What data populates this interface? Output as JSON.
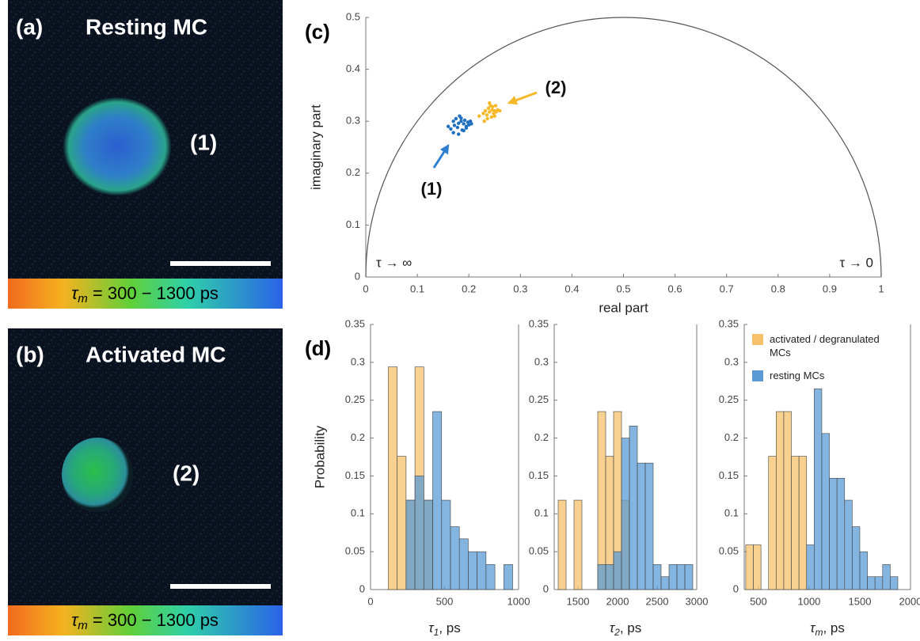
{
  "images": [
    {
      "label": "(a)",
      "title": "Resting MC",
      "cell_label": "(1)",
      "colorbar": {
        "symbol": "τ",
        "subscript": "m",
        "text": " = 300 − 1300 ps"
      }
    },
    {
      "label": "(b)",
      "title": "Activated MC",
      "cell_label": "(2)",
      "colorbar": {
        "symbol": "τ",
        "subscript": "m",
        "text": " = 300 − 1300 ps"
      }
    }
  ],
  "chart_data": [
    {
      "type": "scatter",
      "panel_label": "(c)",
      "x_label": "real part",
      "y_label": "imaginary part",
      "xlim": [
        0,
        1
      ],
      "ylim": [
        0,
        0.5
      ],
      "xticks": [
        0,
        0.1,
        0.2,
        0.3,
        0.4,
        0.5,
        0.6,
        0.7,
        0.8,
        0.9,
        1
      ],
      "yticks": [
        0,
        0.1,
        0.2,
        0.3,
        0.4,
        0.5
      ],
      "annotations": [
        {
          "text": "(1)"
        },
        {
          "text": "(2)"
        },
        {
          "text": "τ → ∞"
        },
        {
          "text": "τ → 0"
        }
      ],
      "series": [
        {
          "color": "#1f6fbf",
          "x": [
            0.16,
            0.165,
            0.17,
            0.172,
            0.175,
            0.178,
            0.18,
            0.182,
            0.185,
            0.187,
            0.19,
            0.192,
            0.195,
            0.198,
            0.2,
            0.203,
            0.205,
            0.17,
            0.18,
            0.19,
            0.185,
            0.195
          ],
          "y": [
            0.29,
            0.285,
            0.3,
            0.292,
            0.305,
            0.288,
            0.296,
            0.31,
            0.3,
            0.283,
            0.295,
            0.302,
            0.29,
            0.298,
            0.293,
            0.3,
            0.295,
            0.278,
            0.275,
            0.282,
            0.306,
            0.287
          ]
        },
        {
          "color": "#f5b829",
          "x": [
            0.22,
            0.228,
            0.232,
            0.235,
            0.238,
            0.24,
            0.242,
            0.245,
            0.248,
            0.25,
            0.253,
            0.256,
            0.26,
            0.236,
            0.244,
            0.25,
            0.24,
            0.23,
            0.246,
            0.252
          ],
          "y": [
            0.31,
            0.315,
            0.32,
            0.312,
            0.325,
            0.318,
            0.33,
            0.322,
            0.315,
            0.32,
            0.318,
            0.322,
            0.32,
            0.305,
            0.308,
            0.31,
            0.335,
            0.3,
            0.328,
            0.33
          ]
        }
      ]
    },
    {
      "type": "histogram",
      "panel_label": "(d)",
      "y_label": "Probability",
      "x_label": {
        "symbol": "τ",
        "subscript": "1",
        "unit": ", ps"
      },
      "xlim": [
        0,
        1000
      ],
      "ylim": [
        0,
        0.35
      ],
      "xticks": [
        0,
        500,
        1000
      ],
      "yticks": [
        0,
        0.05,
        0.1,
        0.15,
        0.2,
        0.25,
        0.3,
        0.35
      ],
      "bins": [
        120,
        180,
        240,
        300,
        360,
        420,
        480,
        540,
        600,
        660,
        720,
        780,
        840,
        900,
        960
      ],
      "series": [
        {
          "name": "activated / degranulated MCs",
          "color": "#f5c26b",
          "values": [
            0.294,
            0.176,
            0.118,
            0.294,
            0.118,
            0,
            0,
            0,
            0,
            0,
            0,
            0,
            0,
            0
          ]
        },
        {
          "name": "resting MCs",
          "color": "#5b9bd5",
          "values": [
            0,
            0,
            0.118,
            0.15,
            0.118,
            0.235,
            0.118,
            0.083,
            0.067,
            0.05,
            0.05,
            0.033,
            0,
            0.033
          ]
        }
      ]
    },
    {
      "type": "histogram",
      "x_label": {
        "symbol": "τ",
        "subscript": "2",
        "unit": ", ps"
      },
      "xlim": [
        1200,
        3000
      ],
      "ylim": [
        0,
        0.35
      ],
      "xticks": [
        1500,
        2000,
        2500,
        3000
      ],
      "yticks": [
        0,
        0.05,
        0.1,
        0.15,
        0.2,
        0.25,
        0.3,
        0.35
      ],
      "bins": [
        1250,
        1350,
        1450,
        1550,
        1650,
        1750,
        1850,
        1950,
        2050,
        2150,
        2250,
        2350,
        2450,
        2550,
        2650,
        2750,
        2850,
        2950
      ],
      "series": [
        {
          "name": "activated / degranulated MCs",
          "color": "#f5c26b",
          "values": [
            0.118,
            0,
            0.118,
            0,
            0,
            0.235,
            0.176,
            0.235,
            0.118,
            0,
            0,
            0,
            0,
            0,
            0,
            0,
            0
          ]
        },
        {
          "name": "resting MCs",
          "color": "#5b9bd5",
          "values": [
            0,
            0,
            0,
            0,
            0,
            0.033,
            0.033,
            0.05,
            0.2,
            0.216,
            0.167,
            0.167,
            0.033,
            0.017,
            0.033,
            0.033,
            0.033
          ]
        }
      ]
    },
    {
      "type": "histogram",
      "legend": "upper right",
      "x_label": {
        "symbol": "τ",
        "subscript": "m",
        "unit": ", ps"
      },
      "xlim": [
        360,
        2000
      ],
      "ylim": [
        0,
        0.35
      ],
      "xticks": [
        500,
        1000,
        1500,
        2000
      ],
      "yticks": [
        0,
        0.05,
        0.1,
        0.15,
        0.2,
        0.25,
        0.3,
        0.35
      ],
      "bins": [
        375,
        450,
        525,
        600,
        675,
        750,
        825,
        900,
        975,
        1050,
        1125,
        1200,
        1275,
        1350,
        1425,
        1500,
        1575,
        1650,
        1725,
        1800,
        1875
      ],
      "series": [
        {
          "name": "activated / degranulated MCs",
          "color": "#f5c26b",
          "values": [
            0.059,
            0.059,
            0,
            0.176,
            0.235,
            0.235,
            0.176,
            0.176,
            0,
            0,
            0,
            0,
            0,
            0,
            0,
            0,
            0,
            0,
            0,
            0
          ]
        },
        {
          "name": "resting MCs",
          "color": "#5b9bd5",
          "values": [
            0,
            0,
            0,
            0,
            0,
            0,
            0,
            0,
            0.059,
            0.265,
            0.206,
            0.147,
            0.147,
            0.118,
            0.083,
            0.05,
            0.017,
            0.017,
            0.033,
            0.017
          ]
        }
      ]
    }
  ]
}
